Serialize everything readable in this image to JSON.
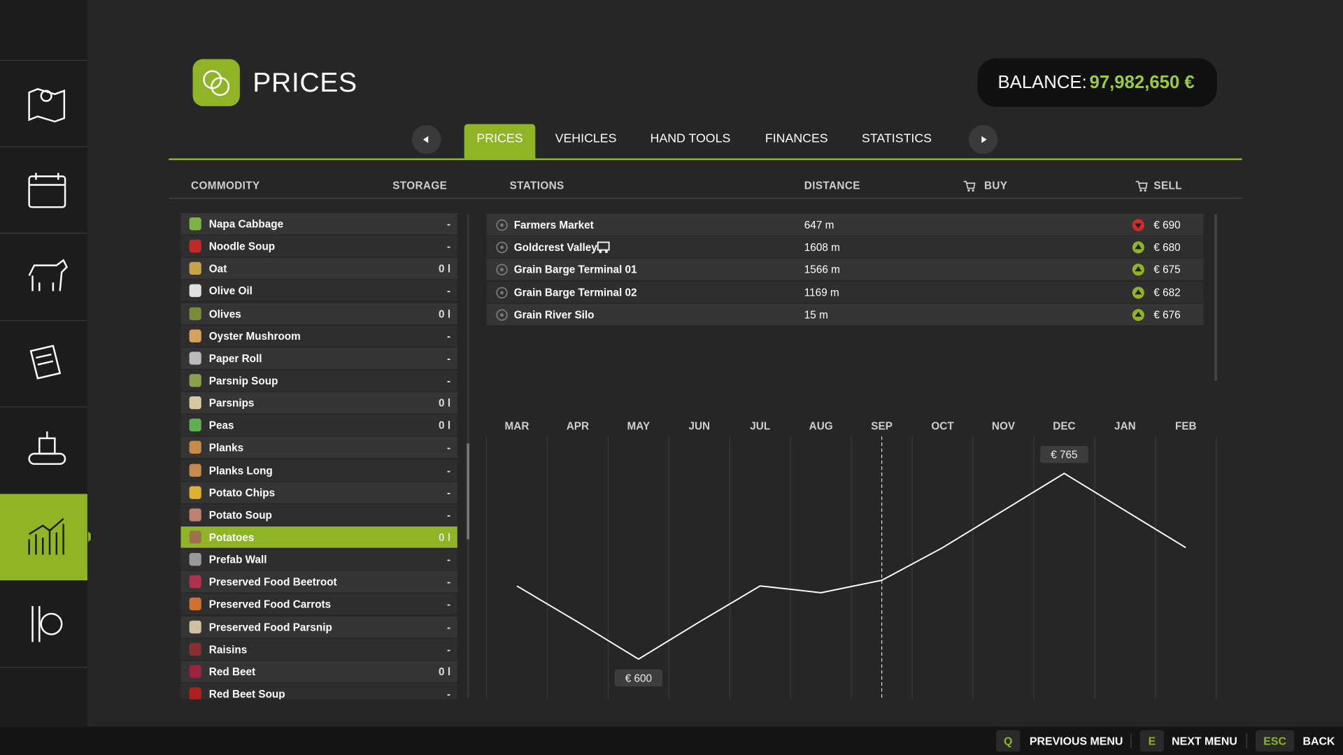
{
  "header": {
    "title": "PRICES",
    "balance_label": "BALANCE:",
    "balance_value": "97,982,650 €"
  },
  "tabs": {
    "items": [
      "PRICES",
      "VEHICLES",
      "HAND TOOLS",
      "FINANCES",
      "STATISTICS"
    ],
    "active_index": 0
  },
  "commodities": {
    "columns": [
      "COMMODITY",
      "STORAGE"
    ],
    "selected_index": 14,
    "rows": [
      [
        "Napa Cabbage",
        "-"
      ],
      [
        "Noodle Soup",
        "-"
      ],
      [
        "Oat",
        "0 l"
      ],
      [
        "Olive Oil",
        "-"
      ],
      [
        "Olives",
        "0 l"
      ],
      [
        "Oyster Mushroom",
        "-"
      ],
      [
        "Paper Roll",
        "-"
      ],
      [
        "Parsnip Soup",
        "-"
      ],
      [
        "Parsnips",
        "0 l"
      ],
      [
        "Peas",
        "0 l"
      ],
      [
        "Planks",
        "-"
      ],
      [
        "Planks Long",
        "-"
      ],
      [
        "Potato Chips",
        "-"
      ],
      [
        "Potato Soup",
        "-"
      ],
      [
        "Potatoes",
        "0 l"
      ],
      [
        "Prefab Wall",
        "-"
      ],
      [
        "Preserved Food Beetroot",
        "-"
      ],
      [
        "Preserved Food Carrots",
        "-"
      ],
      [
        "Preserved Food Parsnip",
        "-"
      ],
      [
        "Raisins",
        "-"
      ],
      [
        "Red Beet",
        "0 l"
      ],
      [
        "Red Beet Soup",
        "-"
      ]
    ]
  },
  "stations": {
    "columns": [
      "STATIONS",
      "DISTANCE",
      "BUY",
      "SELL"
    ],
    "rows": [
      {
        "name": "Farmers Market",
        "distance": "647 m",
        "trend": "down",
        "sell": "€ 690",
        "rail": false
      },
      {
        "name": "Goldcrest Valley",
        "distance": "1608 m",
        "trend": "up",
        "sell": "€ 680",
        "rail": true
      },
      {
        "name": "Grain Barge Terminal 01",
        "distance": "1566 m",
        "trend": "up",
        "sell": "€ 675",
        "rail": false
      },
      {
        "name": "Grain Barge Terminal 02",
        "distance": "1169 m",
        "trend": "up",
        "sell": "€ 682",
        "rail": false
      },
      {
        "name": "Grain River Silo",
        "distance": "15 m",
        "trend": "up",
        "sell": "€ 676",
        "rail": false
      }
    ]
  },
  "price_chart": {
    "type": "line",
    "categories": [
      "MAR",
      "APR",
      "MAY",
      "JUN",
      "JUL",
      "AUG",
      "SEP",
      "OCT",
      "NOV",
      "DEC",
      "JAN",
      "FEB"
    ],
    "values": [
      665,
      633,
      600,
      633,
      665,
      659,
      670,
      699,
      732,
      765,
      732,
      699
    ],
    "value_labels": [
      null,
      null,
      "€ 600",
      null,
      null,
      null,
      null,
      null,
      null,
      "€ 765",
      null,
      null
    ],
    "current_index": 6,
    "color": "#ffffff"
  },
  "footer": {
    "keys": [
      {
        "key": "Q",
        "label": "PREVIOUS MENU"
      },
      {
        "key": "E",
        "label": "NEXT MENU"
      },
      {
        "key": "ESC",
        "label": "BACK"
      }
    ]
  }
}
